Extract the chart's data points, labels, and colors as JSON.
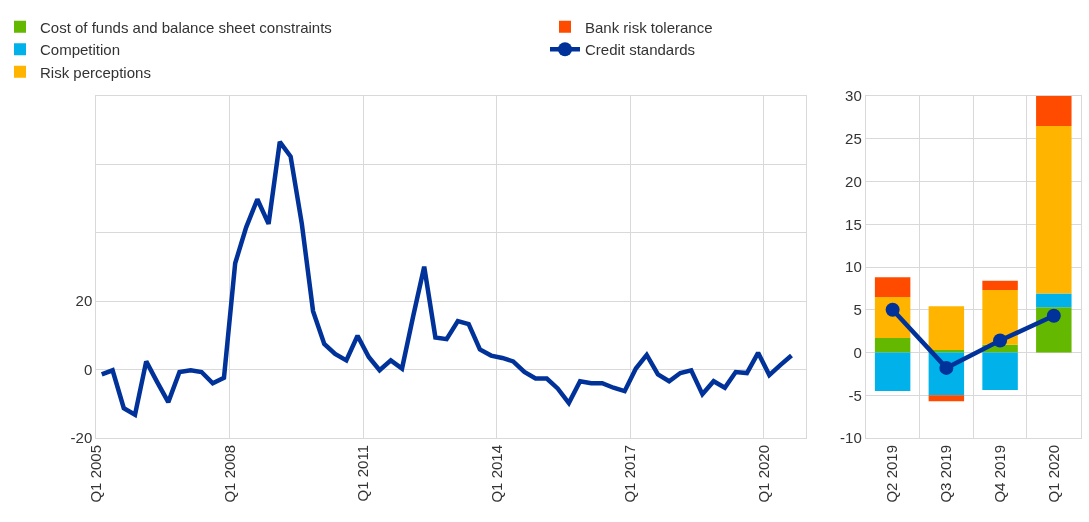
{
  "chart_data": [
    {
      "type": "line",
      "x": [
        "2005-02-15",
        "2005-05-15",
        "2005-08-15",
        "2005-11-15",
        "2006-02-15",
        "2006-05-15",
        "2006-08-15",
        "2006-11-15",
        "2007-02-15",
        "2007-05-15",
        "2007-08-15",
        "2007-11-15",
        "2008-02-15",
        "2008-05-15",
        "2008-08-15",
        "2008-11-15",
        "2009-02-15",
        "2009-05-15",
        "2009-08-15",
        "2009-11-15",
        "2010-02-15",
        "2010-05-15",
        "2010-08-15",
        "2010-11-15",
        "2011-02-15",
        "2011-05-15",
        "2011-08-15",
        "2011-11-15",
        "2012-02-15",
        "2012-05-15",
        "2012-08-15",
        "2012-11-15",
        "2013-02-15",
        "2013-05-15",
        "2013-08-15",
        "2013-11-15",
        "2014-02-15",
        "2014-05-15",
        "2014-08-15",
        "2014-11-15",
        "2015-02-15",
        "2015-05-15",
        "2015-08-15",
        "2015-11-15",
        "2016-02-15",
        "2016-05-15",
        "2016-08-15",
        "2016-11-15",
        "2017-02-15",
        "2017-05-15",
        "2017-08-15",
        "2017-11-15",
        "2018-02-15",
        "2018-05-15",
        "2018-08-15",
        "2018-11-15",
        "2019-02-15",
        "2019-05-15",
        "2019-08-15",
        "2019-11-15",
        "2020-02-15",
        "2020-05-15",
        "2020-08-15"
      ],
      "series": [
        {
          "color": "#003299",
          "values": [
            -1.4,
            -0.2,
            -11.3,
            -13.2,
            2.4,
            -3.6,
            -9.5,
            -0.7,
            -0.2,
            -0.7,
            -4.0,
            -2.4,
            31.1,
            41.6,
            49.8,
            42.6,
            66.6,
            62.3,
            42.6,
            17.1,
            7.5,
            4.6,
            2.7,
            9.9,
            3.7,
            -0.2,
            2.7,
            0.3,
            15.7,
            30.1,
            9.4,
            8.9,
            14.2,
            13.3,
            5.9,
            4.1,
            3.4,
            2.4,
            -0.7,
            -2.6,
            -2.6,
            -5.5,
            -9.8,
            -3.4,
            -4.0,
            -4.0,
            -5.3,
            -6.3,
            0.3,
            4.3,
            -1.4,
            -3.4,
            -1.0,
            -0.2,
            -7.2,
            -3.4,
            -5.3,
            -0.7,
            -1.0,
            4.9,
            -1.6,
            1.3,
            4.1
          ]
        }
      ],
      "xlim": [
        "2005-01-01",
        "2020-12-15"
      ],
      "xticks": [
        {
          "value": "2005-01-01",
          "label": "Q1 2005"
        },
        {
          "value": "2008-01-01",
          "label": "Q1 2008"
        },
        {
          "value": "2011-01-01",
          "label": "Q1 2011"
        },
        {
          "value": "2014-01-01",
          "label": "Q1 2014"
        },
        {
          "value": "2017-01-01",
          "label": "Q1 2017"
        },
        {
          "value": "2020-01-01",
          "label": "Q1 2020"
        }
      ],
      "ylim": [
        -20,
        80
      ],
      "yticks": [
        -20,
        0,
        20,
        {
          "value": 40,
          "label": null
        },
        {
          "value": 60,
          "label": null
        },
        {
          "value": 80,
          "label": null
        }
      ],
      "grid": true,
      "marker": "none",
      "line_style": "solid"
    },
    {
      "type": "bar",
      "stacked": true,
      "categories": [
        "Q2 2019",
        "Q3 2019",
        "Q4 2019",
        "Q1 2020"
      ],
      "series": [
        {
          "name": "Cost of funds and balance sheet constraints",
          "color": "#65b800",
          "values": [
            1.7,
            0.3,
            0.9,
            5.3
          ]
        },
        {
          "name": "Competition",
          "color": "#00b1ea",
          "values": [
            -4.5,
            -5.0,
            -4.4,
            1.6
          ]
        },
        {
          "name": "Risk perceptions",
          "color": "#ffb400",
          "values": [
            4.8,
            5.1,
            6.4,
            19.6
          ]
        },
        {
          "name": "Bank risk tolerance",
          "color": "#ff4b00",
          "values": [
            2.3,
            -0.7,
            1.1,
            3.6
          ]
        },
        {
          "name": "Credit standards",
          "type": "line",
          "color": "#003299",
          "marker": "circle",
          "values": [
            5.0,
            -1.8,
            1.4,
            4.3
          ]
        }
      ],
      "ylim": [
        -10,
        30
      ],
      "yticks": [
        -10,
        -5,
        0,
        5,
        10,
        15,
        20,
        25,
        30
      ],
      "grid": true,
      "legend": "top"
    }
  ]
}
